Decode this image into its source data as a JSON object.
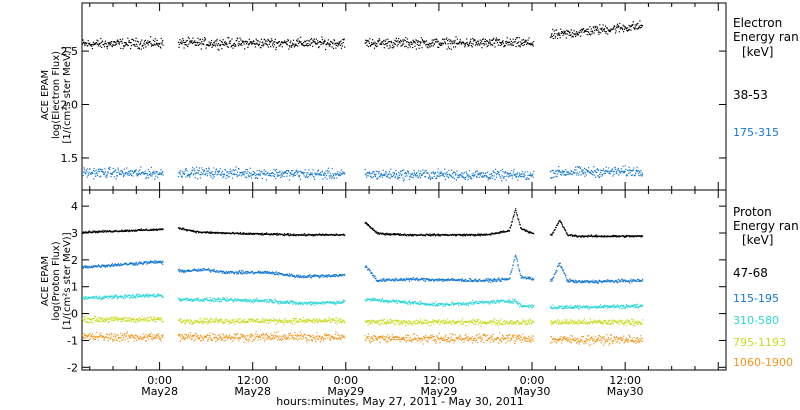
{
  "xaxis": {
    "title": "hours:minutes, May 27, 2011 - May 30, 2011",
    "ticks": [
      {
        "t": 24,
        "time": "0:00",
        "date": "May28"
      },
      {
        "t": 36,
        "time": "12:00",
        "date": "May28"
      },
      {
        "t": 48,
        "time": "0:00",
        "date": "May29"
      },
      {
        "t": 60,
        "time": "12:00",
        "date": "May29"
      },
      {
        "t": 72,
        "time": "0:00",
        "date": "May30"
      },
      {
        "t": 84,
        "time": "12:00",
        "date": "May30"
      }
    ]
  },
  "colors": {
    "black": "#000000",
    "blue": "#1477d2",
    "cyan": "#2bd6d6",
    "yellow": "#c6dc1e",
    "orange": "#f0961e"
  },
  "chart_data": [
    {
      "type": "scatter",
      "ylabel_lines": [
        "ACE EPAM",
        "log(Electron Flux)",
        "[1/(cm²s ster MeV)]"
      ],
      "ylim": [
        1.2,
        2.95
      ],
      "ytick_labels": [
        "1.5",
        "2.0",
        "2.5"
      ],
      "ytick_values": [
        1.5,
        2.0,
        2.5
      ],
      "xlim": [
        14,
        97
      ],
      "legend_title_lines": [
        "Electron",
        "Energy ran"
      ],
      "legend_unit": "[keV]",
      "data_gaps_hours": [
        [
          24.4,
          26.3
        ],
        [
          47.8,
          50.4
        ],
        [
          72.2,
          74.3
        ]
      ],
      "data_end_hour": 86.2,
      "series": [
        {
          "name": "38-53",
          "color": "#000000",
          "x": [
            14,
            24,
            26.5,
            48,
            50.5,
            60,
            72,
            74.5,
            80,
            86
          ],
          "y": [
            2.57,
            2.58,
            2.58,
            2.58,
            2.58,
            2.58,
            2.58,
            2.65,
            2.7,
            2.74
          ],
          "noise": 0.04
        },
        {
          "name": "175-315",
          "color": "#1477d2",
          "x": [
            14,
            24,
            26.5,
            48,
            50.5,
            60,
            72,
            74.5,
            86
          ],
          "y": [
            1.37,
            1.36,
            1.37,
            1.35,
            1.35,
            1.35,
            1.34,
            1.37,
            1.38
          ],
          "noise": 0.04
        }
      ]
    },
    {
      "type": "scatter",
      "ylabel_lines": [
        "ACE EPAM",
        "log(Proton Flux)",
        "[1/(cm²s ster MeV)]"
      ],
      "ylim": [
        -2.1,
        4.6
      ],
      "ytick_labels": [
        "-2",
        "-1",
        "0",
        "1",
        "2",
        "3",
        "4"
      ],
      "ytick_values": [
        -2,
        -1,
        0,
        1,
        2,
        3,
        4
      ],
      "xlim": [
        14,
        97
      ],
      "legend_title_lines": [
        "Proton",
        "Energy ran"
      ],
      "legend_unit": "[keV]",
      "data_gaps_hours": [
        [
          24.4,
          26.3
        ],
        [
          47.8,
          50.4
        ],
        [
          72.2,
          74.3
        ]
      ],
      "data_end_hour": 86.2,
      "series": [
        {
          "name": "47-68",
          "color": "#000000",
          "x": [
            14,
            24,
            26.5,
            29,
            34,
            42,
            48,
            50.5,
            52,
            56,
            66,
            69,
            69.8,
            70.5,
            72,
            74.5,
            75.5,
            76.5,
            78,
            86
          ],
          "y": [
            3.05,
            3.15,
            3.2,
            3.05,
            3.0,
            2.95,
            2.95,
            3.4,
            3.0,
            2.95,
            2.95,
            3.1,
            3.9,
            3.2,
            3.0,
            2.95,
            3.5,
            2.95,
            2.9,
            2.9
          ],
          "noise": 0.03
        },
        {
          "name": "115-195",
          "color": "#1477d2",
          "x": [
            14,
            24,
            26.5,
            30,
            33,
            38,
            42,
            48,
            50.5,
            52,
            56,
            66,
            69,
            69.8,
            70.5,
            72,
            74.5,
            75.5,
            76.5,
            78,
            86
          ],
          "y": [
            1.75,
            1.95,
            1.6,
            1.65,
            1.55,
            1.55,
            1.4,
            1.45,
            1.8,
            1.25,
            1.3,
            1.25,
            1.3,
            2.2,
            1.4,
            1.3,
            1.25,
            1.9,
            1.25,
            1.2,
            1.25
          ],
          "noise": 0.05
        },
        {
          "name": "310-580",
          "color": "#2bd6d6",
          "x": [
            14,
            24,
            26.5,
            38,
            42,
            48,
            50.5,
            60,
            69.8,
            70.5,
            72,
            74.5,
            86
          ],
          "y": [
            0.6,
            0.7,
            0.55,
            0.5,
            0.4,
            0.45,
            0.55,
            0.35,
            0.5,
            0.3,
            0.3,
            0.25,
            0.3
          ],
          "noise": 0.06
        },
        {
          "name": "795-1193",
          "color": "#c6dc1e",
          "x": [
            14,
            24,
            26.5,
            48,
            50.5,
            72,
            74.5,
            86
          ],
          "y": [
            -0.2,
            -0.2,
            -0.25,
            -0.25,
            -0.3,
            -0.3,
            -0.3,
            -0.3
          ],
          "noise": 0.09
        },
        {
          "name": "1060-1900",
          "color": "#f0961e",
          "x": [
            14,
            24,
            26.5,
            48,
            50.5,
            72,
            74.5,
            86
          ],
          "y": [
            -0.85,
            -0.85,
            -0.85,
            -0.85,
            -0.9,
            -0.9,
            -0.95,
            -0.95
          ],
          "noise": 0.14
        }
      ]
    }
  ]
}
